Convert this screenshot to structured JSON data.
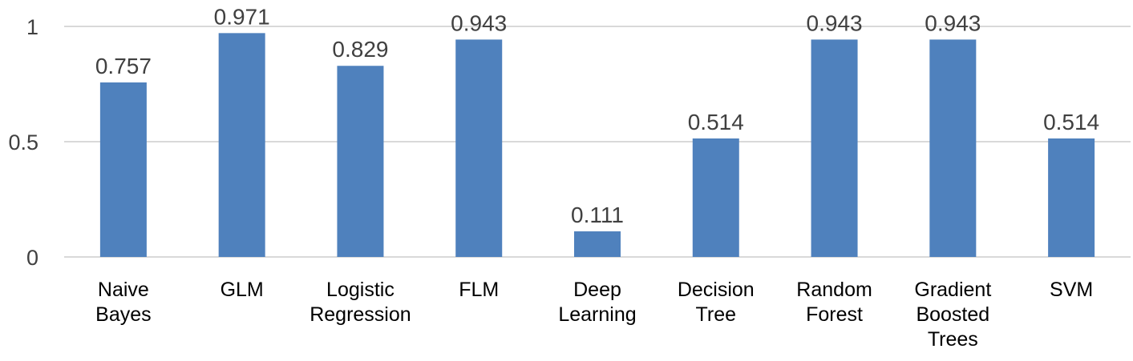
{
  "chart_data": {
    "type": "bar",
    "categories": [
      [
        "Naive",
        "Bayes"
      ],
      [
        "GLM"
      ],
      [
        "Logistic",
        "Regression"
      ],
      [
        "FLM"
      ],
      [
        "Deep",
        "Learning"
      ],
      [
        "Decision",
        "Tree"
      ],
      [
        "Random",
        "Forest"
      ],
      [
        "Gradient",
        "Boosted",
        "Trees"
      ],
      [
        "SVM"
      ]
    ],
    "values": [
      0.757,
      0.971,
      0.829,
      0.943,
      0.111,
      0.514,
      0.943,
      0.943,
      0.514
    ],
    "value_labels": [
      "0.757",
      "0.971",
      "0.829",
      "0.943",
      "0.111",
      "0.514",
      "0.943",
      "0.943",
      "0.514"
    ],
    "yticks": [
      0,
      0.5,
      1
    ],
    "ytick_labels": [
      "0",
      "0.5",
      "1"
    ],
    "ylim": [
      0,
      1
    ],
    "grid": true,
    "bar_color": "#4f81bd",
    "grid_color": "#d9d9d9"
  }
}
